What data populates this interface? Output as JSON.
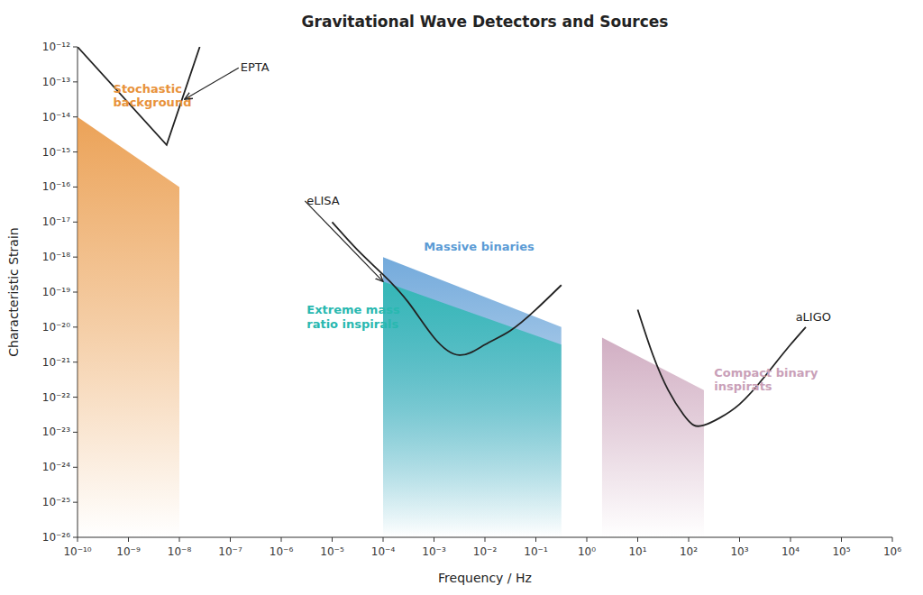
{
  "chart_data": {
    "type": "line",
    "title": "Gravitational Wave Detectors and Sources",
    "x_label": "Frequency / Hz",
    "y_label": "Characteristic Strain",
    "log": true,
    "grid": false,
    "xlim": [
      1e-10,
      1000000.0
    ],
    "ylim": [
      1e-26,
      1e-12
    ],
    "xticks": [
      {
        "value": 1e-10,
        "label": "10⁻¹⁰"
      },
      {
        "value": 1e-09,
        "label": "10⁻⁹"
      },
      {
        "value": 1e-08,
        "label": "10⁻⁸"
      },
      {
        "value": 1e-07,
        "label": "10⁻⁷"
      },
      {
        "value": 1e-06,
        "label": "10⁻⁶"
      },
      {
        "value": 1e-05,
        "label": "10⁻⁵"
      },
      {
        "value": 0.0001,
        "label": "10⁻⁴"
      },
      {
        "value": 0.001,
        "label": "10⁻³"
      },
      {
        "value": 0.01,
        "label": "10⁻²"
      },
      {
        "value": 0.1,
        "label": "10⁻¹"
      },
      {
        "value": 1,
        "label": "10⁰"
      },
      {
        "value": 10,
        "label": "10¹"
      },
      {
        "value": 100,
        "label": "10²"
      },
      {
        "value": 1000,
        "label": "10³"
      },
      {
        "value": 10000,
        "label": "10⁴"
      },
      {
        "value": 100000,
        "label": "10⁵"
      },
      {
        "value": 1000000,
        "label": "10⁶"
      }
    ],
    "yticks": [
      {
        "value": 1e-26,
        "label": "10⁻²⁶"
      },
      {
        "value": 1e-25,
        "label": "10⁻²⁵"
      },
      {
        "value": 1e-24,
        "label": "10⁻²⁴"
      },
      {
        "value": 1e-23,
        "label": "10⁻²³"
      },
      {
        "value": 1e-22,
        "label": "10⁻²²"
      },
      {
        "value": 1e-21,
        "label": "10⁻²¹"
      },
      {
        "value": 1e-20,
        "label": "10⁻²⁰"
      },
      {
        "value": 1e-19,
        "label": "10⁻¹⁹"
      },
      {
        "value": 1e-18,
        "label": "10⁻¹⁸"
      },
      {
        "value": 1e-17,
        "label": "10⁻¹⁷"
      },
      {
        "value": 1e-16,
        "label": "10⁻¹⁶"
      },
      {
        "value": 1e-15,
        "label": "10⁻¹⁵"
      },
      {
        "value": 1e-14,
        "label": "10⁻¹⁴"
      },
      {
        "value": 1e-13,
        "label": "10⁻¹³"
      },
      {
        "value": 1e-12,
        "label": "10⁻¹²"
      }
    ],
    "series": [
      {
        "name": "Stochastic\nbackground",
        "type": "area",
        "color": "#E8923A",
        "x": [
          1e-10,
          1e-08
        ],
        "values": [
          1e-14,
          1e-16
        ]
      },
      {
        "name": "Massive binaries",
        "type": "area",
        "color": "#5B9BD5",
        "x": [
          0.0001,
          0.3162278
        ],
        "values": [
          1e-18,
          1e-20
        ]
      },
      {
        "name": "Extreme mass\nratio inspirals",
        "type": "area",
        "color": "#28B8B0",
        "x": [
          0.0001,
          0.3162278
        ],
        "values": [
          1.995262e-19,
          3.162278e-21
        ]
      },
      {
        "name": "Compact binary\ninspirats",
        "type": "area",
        "color": "#C9A0B8",
        "x": [
          1.995262,
          199.5262
        ],
        "values": [
          5.011872e-21,
          1.584893e-22
        ]
      },
      {
        "name": "EPTA",
        "type": "line",
        "line_style": "solid",
        "x": [
          1e-10,
          5.623413e-09,
          2.511886e-08
        ],
        "values": [
          1e-12,
          1.584893e-15,
          1e-12
        ]
      },
      {
        "name": "eLISA",
        "type": "line",
        "line_style": "smooth",
        "x": [
          1e-05,
          3.162278e-05,
          0.0001,
          0.0003162278,
          0.001,
          0.003162278,
          0.01,
          0.03162278,
          0.1,
          0.3162278
        ],
        "values": [
          1e-17,
          1.584893e-18,
          3.162278e-19,
          5.011872e-20,
          5.011872e-21,
          1.584893e-21,
          3.162278e-21,
          7.943282e-21,
          3.162278e-20,
          1.584893e-19
        ]
      },
      {
        "name": "aLIGO",
        "type": "line",
        "line_style": "smooth",
        "x": [
          10,
          19.95262,
          39.81072,
          79.43282,
          125.8925,
          199.5262,
          398.1072,
          1000,
          3162.278,
          10000,
          19952.62
        ],
        "values": [
          3.162278e-20,
          1.584893e-21,
          1.584893e-22,
          3.162278e-23,
          1.584893e-23,
          1.584893e-23,
          2.511886e-23,
          6.309573e-23,
          3.981072e-22,
          3.162278e-21,
          1e-20
        ]
      }
    ]
  }
}
